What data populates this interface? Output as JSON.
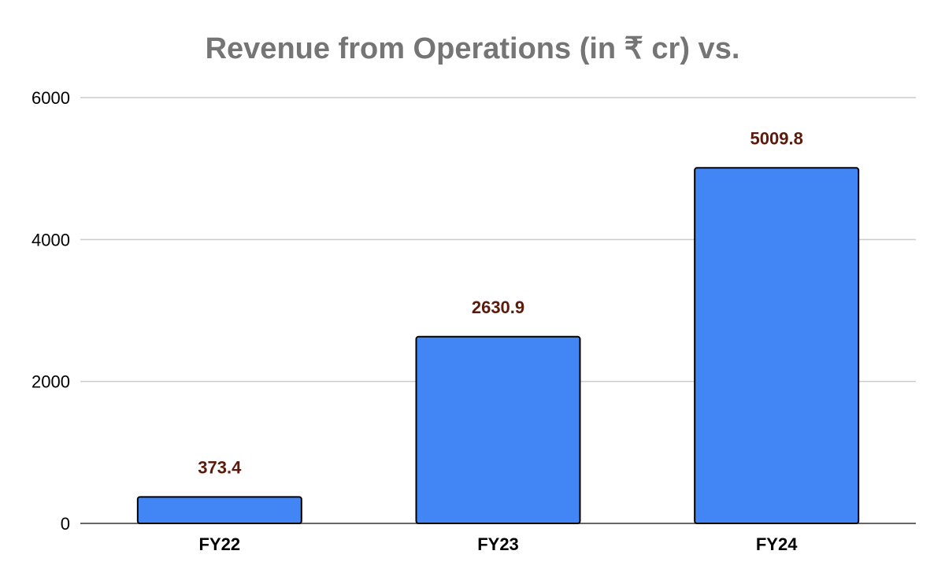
{
  "chart_data": {
    "type": "bar",
    "title": "Revenue from Operations (in ₹ cr) vs.",
    "xlabel": "",
    "ylabel": "",
    "categories": [
      "FY22",
      "FY23",
      "FY24"
    ],
    "values": [
      373.4,
      2630.9,
      5009.8
    ],
    "data_labels": [
      "373.4",
      "2630.9",
      "5009.8"
    ],
    "ylim": [
      0,
      6000
    ],
    "yticks": [
      "0",
      "2000",
      "4000",
      "6000"
    ],
    "grid": true,
    "legend": "none",
    "colors": {
      "bar": "#4285f4",
      "data_label": "#5c1a0b",
      "title": "#757575"
    }
  }
}
